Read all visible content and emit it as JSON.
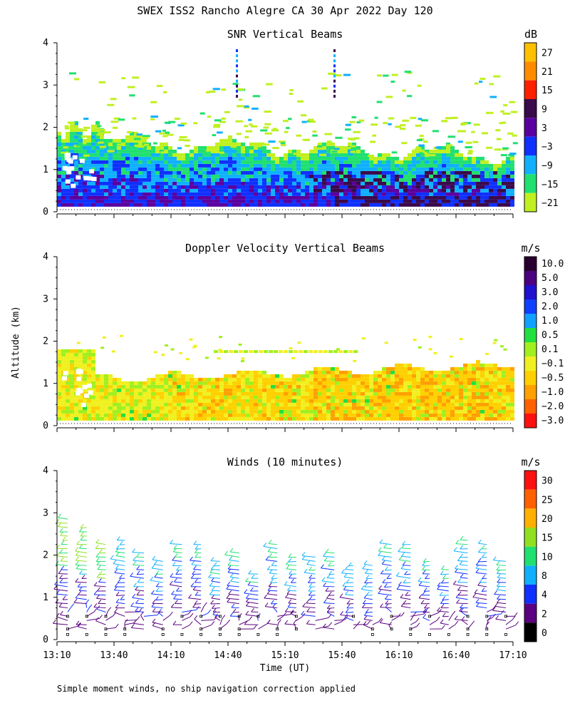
{
  "title": "SWEX ISS2 Rancho Alegre CA  30 Apr 2022 Day 120",
  "ylabel": "Altitude (km)",
  "xlabel": "Time (UT)",
  "footnote": "Simple moment winds, no ship navigation correction applied",
  "x_ticks": [
    "13:10",
    "13:40",
    "14:10",
    "14:40",
    "15:10",
    "15:40",
    "16:10",
    "16:40",
    "17:10"
  ],
  "y_ticks": [
    "0",
    "1",
    "2",
    "3",
    "4"
  ],
  "chart_data": [
    {
      "type": "heatmap",
      "title": "SNR Vertical Beams",
      "unit": "dB",
      "xlim": [
        "13:10",
        "17:10"
      ],
      "ylim": [
        0,
        4
      ],
      "y_ticks": [
        0,
        1,
        2,
        3,
        4
      ],
      "colorbar": {
        "labels": [
          "27",
          "21",
          "15",
          "9",
          "3",
          "−3",
          "−9",
          "−15",
          "−21"
        ],
        "colors": [
          "#ffc000",
          "#ff8c00",
          "#ff2000",
          "#3a0a4a",
          "#5a00a0",
          "#1030ff",
          "#10b0ff",
          "#20e070",
          "#c0f020"
        ]
      },
      "layers": [
        {
          "description": "top of data (km) by time",
          "x_hours_utc": [
            13.17,
            13.5,
            14.0,
            14.5,
            15.0,
            15.5,
            16.0,
            16.5,
            17.0
          ],
          "top_km": [
            2.0,
            1.8,
            1.4,
            1.5,
            1.4,
            1.5,
            1.5,
            1.5,
            1.4
          ]
        }
      ]
    },
    {
      "type": "heatmap",
      "title": "Doppler Velocity Vertical Beams",
      "unit": "m/s",
      "xlim": [
        "13:10",
        "17:10"
      ],
      "ylim": [
        0,
        4
      ],
      "y_ticks": [
        0,
        1,
        2,
        3,
        4
      ],
      "colorbar": {
        "labels": [
          "10.0",
          "5.0",
          "3.0",
          "2.0",
          "1.0",
          "0.5",
          "0.1",
          "−0.1",
          "−0.5",
          "−1.0",
          "−2.0",
          "−3.0"
        ],
        "colors": [
          "#2a0030",
          "#4a0080",
          "#2010d0",
          "#1040ff",
          "#10a0ff",
          "#20e040",
          "#a0f020",
          "#f0f020",
          "#ffd000",
          "#ffa000",
          "#ff6000",
          "#ff1010"
        ]
      }
    },
    {
      "type": "barbs",
      "title": "Winds (10 minutes)",
      "unit": "m/s",
      "xlim": [
        "13:10",
        "17:10"
      ],
      "ylim": [
        0,
        4
      ],
      "y_ticks": [
        0,
        1,
        2,
        3,
        4
      ],
      "colorbar": {
        "labels": [
          "30",
          "25",
          "20",
          "15",
          "10",
          "8",
          "4",
          "2",
          "0"
        ],
        "colors": [
          "#ff1010",
          "#ff6000",
          "#ffb000",
          "#90e020",
          "#20e070",
          "#10b0ff",
          "#1030ff",
          "#5a0080",
          "#000000"
        ]
      },
      "profiles_count": 24
    }
  ]
}
